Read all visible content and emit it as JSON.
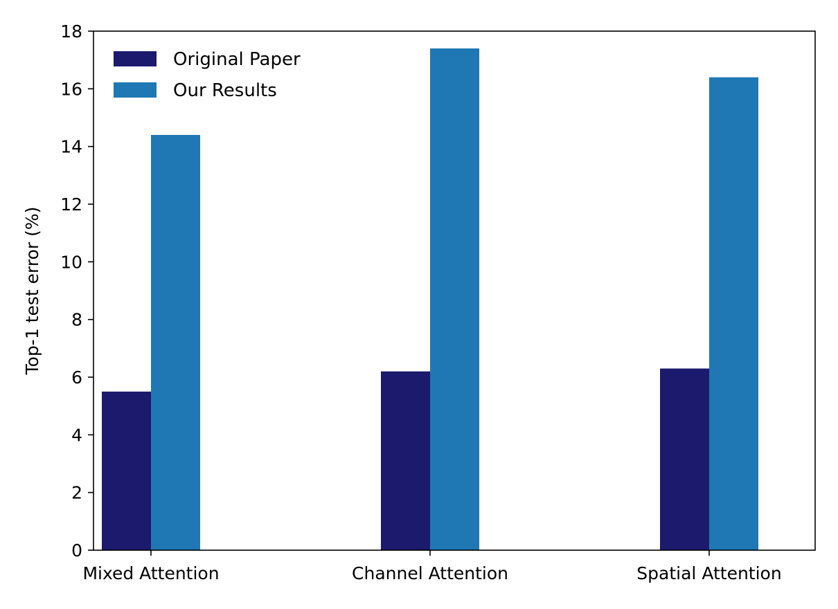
{
  "chart_data": {
    "type": "bar",
    "title": "",
    "xlabel": "",
    "ylabel": "Top-1 test error (%)",
    "categories": [
      "Mixed Attention",
      "Channel Attention",
      "Spatial Attention"
    ],
    "series": [
      {
        "name": "Original Paper",
        "color": "#1b1a6d",
        "values": [
          5.5,
          6.2,
          6.3
        ]
      },
      {
        "name": "Our Results",
        "color": "#1f78b4",
        "values": [
          14.4,
          17.4,
          16.4
        ]
      }
    ],
    "ylim": [
      0,
      18
    ],
    "yticks": [
      0,
      2,
      4,
      6,
      8,
      10,
      12,
      14,
      16,
      18
    ],
    "grid": false,
    "legend": {
      "position": "top-left",
      "frame": false
    }
  }
}
